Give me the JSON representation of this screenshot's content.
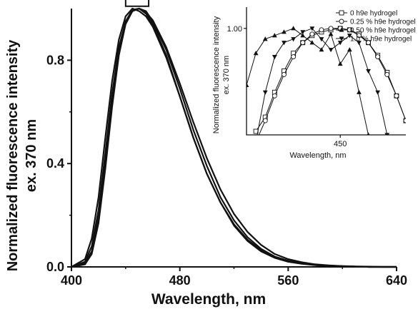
{
  "chart_data": [
    {
      "type": "line",
      "title": "",
      "xlabel": "Wavelength, nm",
      "ylabel": "Normalized fluorescence intensity",
      "ylabel_line2": "ex. 370 nm",
      "xlim": [
        400,
        640
      ],
      "ylim": [
        0,
        1.0
      ],
      "xticks": [
        400,
        480,
        560,
        640
      ],
      "yticks": [
        0.0,
        0.4,
        0.8
      ],
      "ytick_labels": [
        "0.0",
        "0.4",
        "0.8"
      ],
      "grid": false,
      "peak_box": {
        "x_range": [
          440,
          457
        ],
        "y_range": [
          0.98,
          1.02
        ]
      },
      "series": [
        {
          "x": [
            400,
            410,
            415,
            420,
            425,
            430,
            435,
            440,
            445,
            450,
            455,
            460,
            470,
            480,
            490,
            500,
            510,
            520,
            530,
            540,
            550,
            560,
            570,
            580,
            590,
            600,
            610,
            620,
            630,
            640
          ],
          "values": [
            0.0,
            0.01,
            0.05,
            0.17,
            0.38,
            0.62,
            0.82,
            0.94,
            0.99,
            1.0,
            0.98,
            0.94,
            0.82,
            0.66,
            0.5,
            0.36,
            0.25,
            0.16,
            0.1,
            0.06,
            0.035,
            0.02,
            0.012,
            0.007,
            0.004,
            0.002,
            0.001,
            0.0,
            0.0,
            0.0
          ]
        },
        {
          "x": [
            400,
            410,
            415,
            420,
            425,
            430,
            435,
            440,
            445,
            450,
            455,
            460,
            470,
            480,
            490,
            500,
            510,
            520,
            530,
            540,
            550,
            560,
            570,
            580,
            590,
            600,
            610,
            620,
            630,
            640
          ],
          "values": [
            0.0,
            0.02,
            0.08,
            0.22,
            0.44,
            0.67,
            0.85,
            0.95,
            0.99,
            1.0,
            0.99,
            0.95,
            0.84,
            0.69,
            0.53,
            0.39,
            0.27,
            0.18,
            0.115,
            0.07,
            0.04,
            0.024,
            0.014,
            0.008,
            0.005,
            0.003,
            0.001,
            0.0,
            0.0,
            0.0
          ]
        },
        {
          "x": [
            400,
            410,
            415,
            420,
            425,
            430,
            435,
            440,
            445,
            450,
            455,
            460,
            470,
            480,
            490,
            500,
            510,
            520,
            530,
            540,
            550,
            560,
            570,
            580,
            590,
            600,
            610,
            620,
            630,
            640
          ],
          "values": [
            0.0,
            0.03,
            0.11,
            0.27,
            0.5,
            0.72,
            0.88,
            0.97,
            1.0,
            0.99,
            0.97,
            0.93,
            0.81,
            0.66,
            0.5,
            0.36,
            0.25,
            0.165,
            0.105,
            0.065,
            0.038,
            0.022,
            0.013,
            0.007,
            0.004,
            0.002,
            0.001,
            0.0,
            0.0,
            0.0
          ]
        },
        {
          "x": [
            400,
            410,
            415,
            420,
            425,
            430,
            435,
            440,
            445,
            450,
            455,
            460,
            470,
            480,
            490,
            500,
            510,
            520,
            530,
            540,
            550,
            560,
            570,
            580,
            590,
            600,
            610,
            620,
            630,
            640
          ],
          "values": [
            0.0,
            0.015,
            0.06,
            0.19,
            0.41,
            0.64,
            0.83,
            0.95,
            0.995,
            1.0,
            0.985,
            0.955,
            0.85,
            0.71,
            0.56,
            0.42,
            0.3,
            0.205,
            0.135,
            0.085,
            0.05,
            0.03,
            0.018,
            0.01,
            0.006,
            0.003,
            0.002,
            0.001,
            0.0,
            0.0
          ]
        }
      ]
    },
    {
      "type": "line",
      "title": "",
      "xlabel": "Wavelength, nm",
      "ylabel": "Normalized fluorescence intensity",
      "ylabel_line2": "ex. 370 nm",
      "xlim": [
        440,
        457
      ],
      "ylim": [
        0.985,
        1.003
      ],
      "xticks": [
        450
      ],
      "yticks": [
        1.0
      ],
      "ytick_labels": [
        "1.00"
      ],
      "legend_position": "top-right",
      "grid": false,
      "series": [
        {
          "name": "0 h9e hydrogel",
          "marker": "square",
          "x": [
            441,
            442,
            443,
            444,
            445,
            446,
            447,
            448,
            449,
            450,
            451,
            452,
            453,
            454,
            455,
            456,
            457
          ],
          "values": [
            0.9855,
            0.9875,
            0.991,
            0.994,
            0.9965,
            0.998,
            0.999,
            0.9995,
            0.9998,
            1.0,
            0.9998,
            0.9992,
            0.998,
            0.9962,
            0.9938,
            0.9905,
            0.987
          ]
        },
        {
          "name": "0.25 % h9e hydrogel",
          "marker": "circle",
          "x": [
            441,
            442,
            443,
            444,
            445,
            446,
            447,
            448,
            449,
            450,
            451,
            452,
            453,
            454,
            455,
            456,
            457
          ],
          "values": [
            0.984,
            0.987,
            0.9905,
            0.9935,
            0.996,
            0.998,
            0.9992,
            0.9998,
            1.0,
            1.0,
            0.9998,
            0.999,
            0.998,
            0.996,
            0.9935,
            0.9905,
            0.987
          ]
        },
        {
          "name": "0.50 % h9e hydrogel",
          "marker": "triangle-up",
          "x": [
            440,
            441,
            442,
            443,
            444,
            445,
            446,
            447,
            448,
            449,
            450,
            451,
            452,
            453
          ],
          "values": [
            0.992,
            0.9965,
            0.9985,
            0.999,
            0.9995,
            1.0,
            0.999,
            0.998,
            0.997,
            0.9992,
            0.995,
            0.997,
            0.991,
            0.985
          ]
        },
        {
          "name": "1.0 % h9e hydrogel",
          "marker": "triangle-down",
          "x": [
            441,
            442,
            443,
            444,
            445,
            446,
            447,
            448,
            449,
            450,
            451,
            452,
            453,
            454,
            455
          ],
          "values": [
            0.984,
            0.991,
            0.996,
            0.998,
            0.9985,
            0.9995,
            1.0,
            0.9985,
            0.997,
            0.998,
            0.999,
            0.998,
            0.994,
            0.991,
            0.985
          ]
        }
      ]
    }
  ]
}
